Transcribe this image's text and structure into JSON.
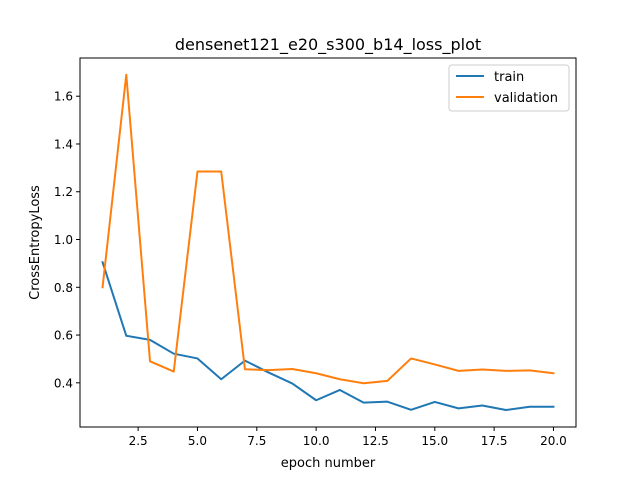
{
  "chart_data": {
    "type": "line",
    "title": "densenet121_e20_s300_b14_loss_plot",
    "xlabel": "epoch number",
    "ylabel": "CrossEntropyLoss",
    "xlim": [
      0.05,
      20.95
    ],
    "ylim": [
      0.215,
      1.76
    ],
    "xticks": [
      2.5,
      5.0,
      7.5,
      10.0,
      12.5,
      15.0,
      17.5,
      20.0
    ],
    "xtick_labels": [
      "2.5",
      "5.0",
      "7.5",
      "10.0",
      "12.5",
      "15.0",
      "17.5",
      "20.0"
    ],
    "yticks": [
      0.4,
      0.6,
      0.8,
      1.0,
      1.2,
      1.4,
      1.6
    ],
    "ytick_labels": [
      "0.4",
      "0.6",
      "0.8",
      "1.0",
      "1.2",
      "1.4",
      "1.6"
    ],
    "grid": false,
    "legend_position": "top-right",
    "x": [
      1,
      2,
      3,
      4,
      5,
      6,
      7,
      8,
      9,
      10,
      11,
      12,
      13,
      14,
      15,
      16,
      17,
      18,
      19,
      20
    ],
    "series": [
      {
        "name": "train",
        "color": "#1f77b4",
        "values": [
          0.905,
          0.597,
          0.58,
          0.522,
          0.502,
          0.415,
          0.493,
          0.443,
          0.397,
          0.327,
          0.37,
          0.317,
          0.321,
          0.287,
          0.32,
          0.293,
          0.305,
          0.286,
          0.3,
          0.3
        ]
      },
      {
        "name": "validation",
        "color": "#ff7f0e",
        "values": [
          0.8,
          1.69,
          0.49,
          0.447,
          1.285,
          1.285,
          0.457,
          0.453,
          0.458,
          0.44,
          0.415,
          0.398,
          0.408,
          0.502,
          0.477,
          0.45,
          0.456,
          0.45,
          0.452,
          0.44
        ]
      }
    ]
  }
}
